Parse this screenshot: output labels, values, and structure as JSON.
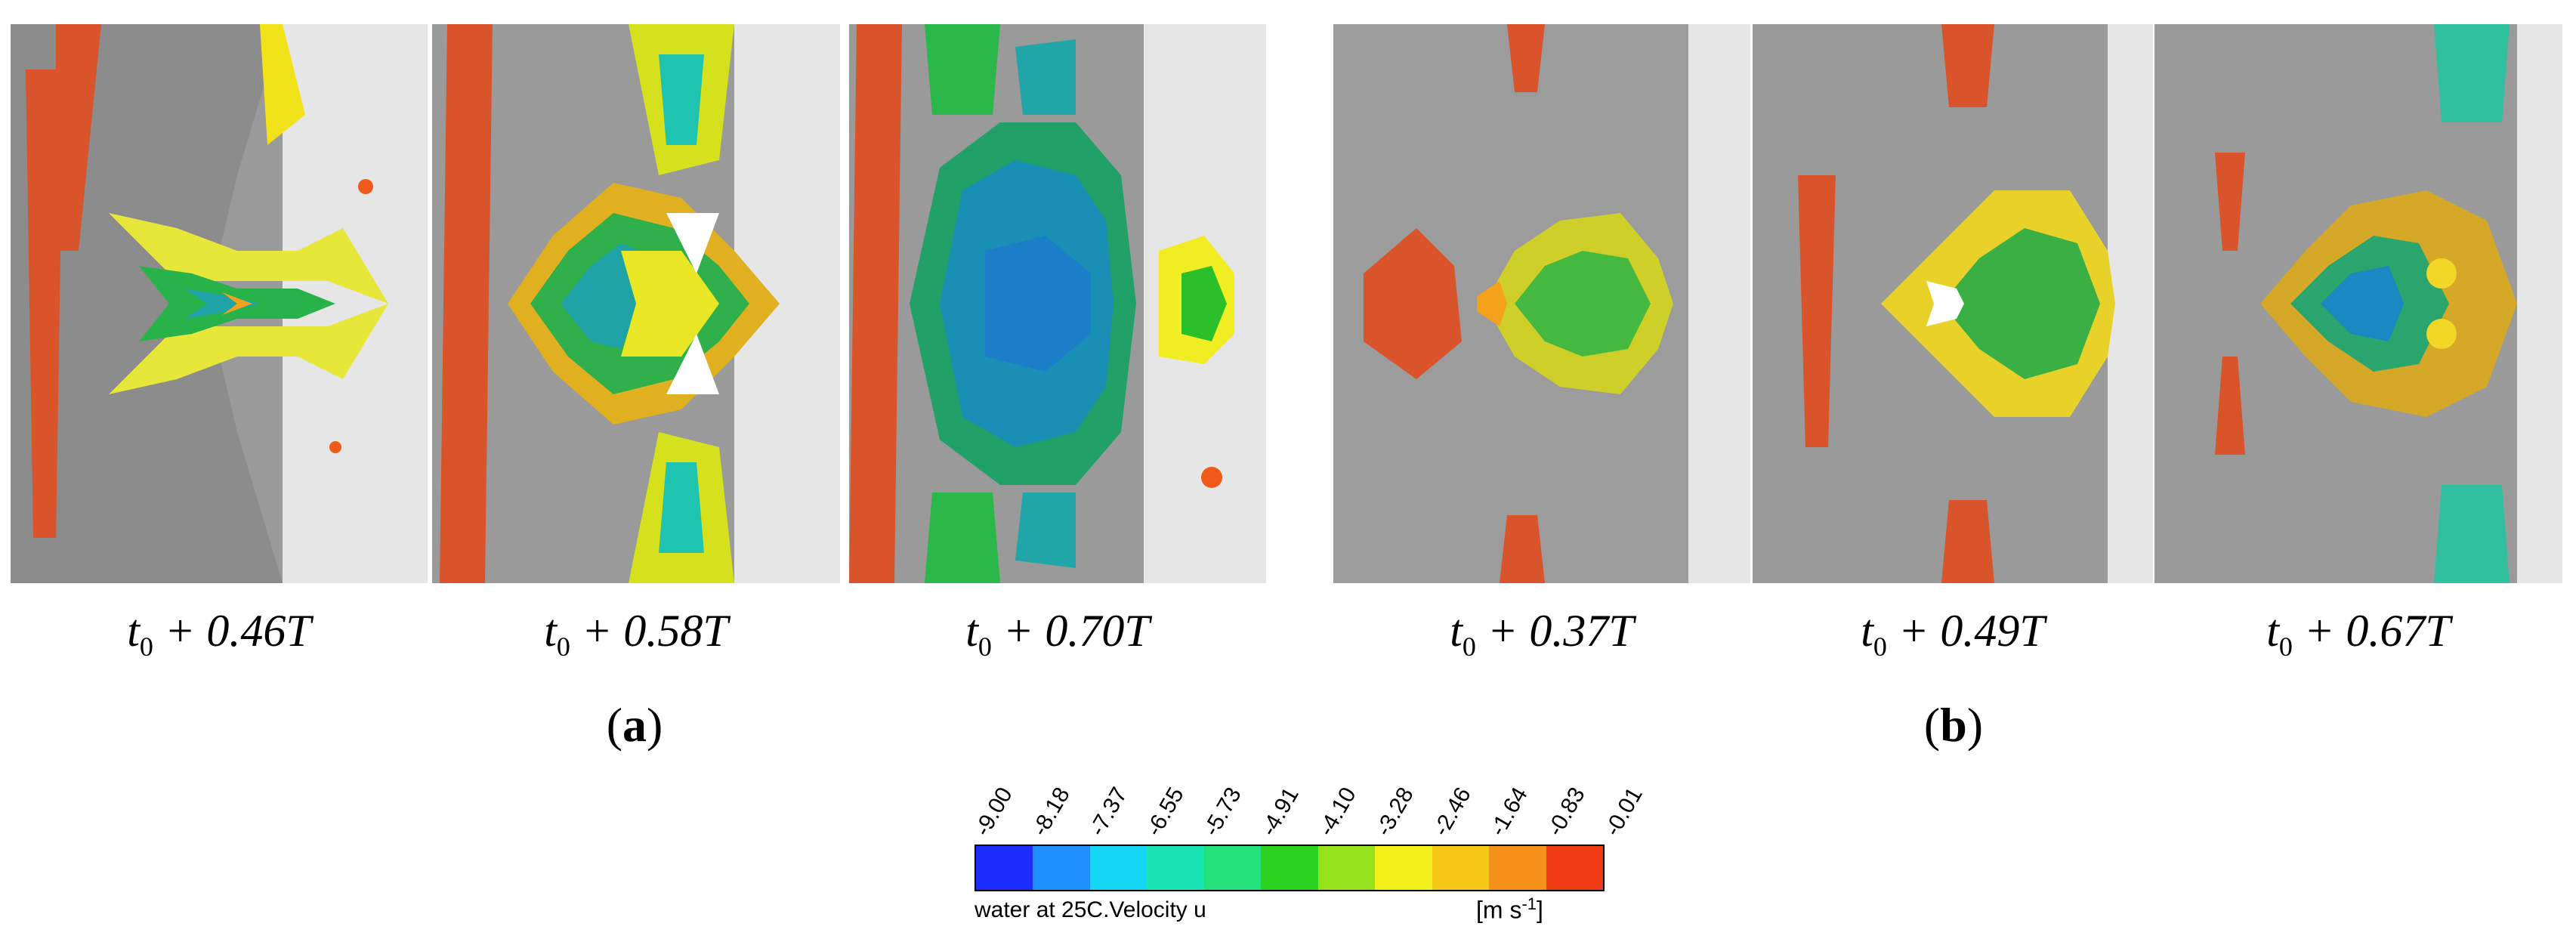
{
  "figure": {
    "group_a": {
      "label": "a",
      "panels": [
        {
          "base": "t",
          "sub": "0",
          "rest": " + 0.46T"
        },
        {
          "base": "t",
          "sub": "0",
          "rest": " + 0.58T"
        },
        {
          "base": "t",
          "sub": "0",
          "rest": " + 0.70T"
        }
      ]
    },
    "group_b": {
      "label": "b",
      "panels": [
        {
          "base": "t",
          "sub": "0",
          "rest": " + 0.37T"
        },
        {
          "base": "t",
          "sub": "0",
          "rest": " + 0.49T"
        },
        {
          "base": "t",
          "sub": "0",
          "rest": " + 0.67T"
        }
      ]
    }
  },
  "legend": {
    "title": "water at 25C.Velocity u",
    "unit_prefix": "[m s",
    "unit_exp": "-1",
    "unit_suffix": "]",
    "ticks": [
      "-9.00",
      "-8.18",
      "-7.37",
      "-6.55",
      "-5.73",
      "-4.91",
      "-4.10",
      "-3.28",
      "-2.46",
      "-1.64",
      "-0.83",
      "-0.01"
    ],
    "colors": [
      "#1a2cff",
      "#1f8fff",
      "#14d6f5",
      "#19e6b4",
      "#22e07a",
      "#2bd320",
      "#96e21a",
      "#f2f21a",
      "#f5c716",
      "#f5901a",
      "#f03c14"
    ]
  }
}
